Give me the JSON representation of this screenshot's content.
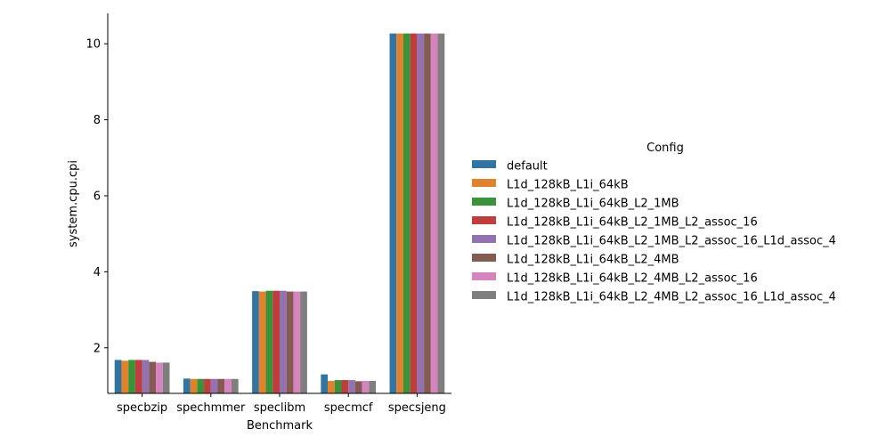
{
  "chart_data": {
    "type": "bar",
    "title": "",
    "xlabel": "Benchmark",
    "ylabel": "system.cpu.cpi",
    "ylim": [
      0.8,
      10.8
    ],
    "yticks": [
      2,
      4,
      6,
      8,
      10
    ],
    "categories": [
      "specbzip",
      "spechmmer",
      "speclibm",
      "specmcf",
      "specsjeng"
    ],
    "legend": {
      "title": "Config",
      "placement": "right"
    },
    "series": [
      {
        "name": "default",
        "color": "#3274a1",
        "values": [
          1.68,
          1.19,
          3.49,
          1.3,
          10.27
        ]
      },
      {
        "name": "L1d_128kB_L1i_64kB",
        "color": "#e1812c",
        "values": [
          1.66,
          1.18,
          3.48,
          1.13,
          10.27
        ]
      },
      {
        "name": "L1d_128kB_L1i_64kB_L2_1MB",
        "color": "#3a923a",
        "values": [
          1.68,
          1.18,
          3.5,
          1.15,
          10.27
        ]
      },
      {
        "name": "L1d_128kB_L1i_64kB_L2_1MB_L2_assoc_16",
        "color": "#c03d3e",
        "values": [
          1.68,
          1.18,
          3.5,
          1.15,
          10.27
        ]
      },
      {
        "name": "L1d_128kB_L1i_64kB_L2_1MB_L2_assoc_16_L1d_assoc_4",
        "color": "#9372b2",
        "values": [
          1.68,
          1.18,
          3.5,
          1.15,
          10.27
        ]
      },
      {
        "name": "L1d_128kB_L1i_64kB_L2_4MB",
        "color": "#845b53",
        "values": [
          1.63,
          1.18,
          3.48,
          1.12,
          10.27
        ]
      },
      {
        "name": "L1d_128kB_L1i_64kB_L2_4MB_L2_assoc_16",
        "color": "#d684bd",
        "values": [
          1.61,
          1.18,
          3.48,
          1.13,
          10.27
        ]
      },
      {
        "name": "L1d_128kB_L1i_64kB_L2_4MB_L2_assoc_16_L1d_assoc_4",
        "color": "#7f7f7f",
        "values": [
          1.61,
          1.18,
          3.48,
          1.13,
          10.27
        ]
      }
    ]
  }
}
